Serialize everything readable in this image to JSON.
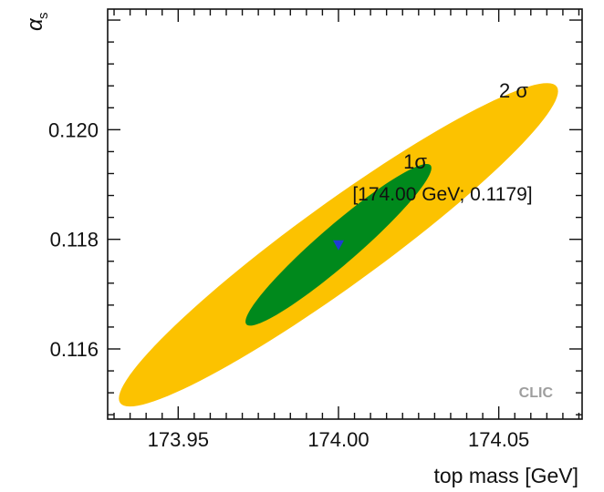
{
  "chart_data": {
    "type": "contour",
    "xlabel": "top mass [GeV]",
    "ylabel_symbol": "α",
    "ylabel_sub": "s",
    "xlim": [
      173.928,
      174.076
    ],
    "ylim": [
      0.11472,
      0.1222
    ],
    "xticks": [
      173.95,
      174.0,
      174.05
    ],
    "xtick_labels": [
      "173.95",
      "174.00",
      "174.05"
    ],
    "yticks": [
      0.116,
      0.118,
      0.12
    ],
    "ytick_labels": [
      "0.116",
      "0.118",
      "0.120"
    ],
    "grid": false,
    "best_fit": {
      "x": 174.0,
      "y": 0.1179,
      "label": "[174.00 GeV; 0.1179]",
      "marker": "down-triangle"
    },
    "contours": [
      {
        "name": "2σ",
        "label": "2 σ",
        "color": "#fcc200",
        "center": [
          174.0,
          0.1179
        ],
        "x_extent": [
          173.9315,
          174.0685
        ],
        "y_extent": [
          0.115,
          0.1209
        ]
      },
      {
        "name": "1σ",
        "label": "1σ",
        "color": "#00891c",
        "center": [
          174.0,
          0.1179
        ],
        "x_extent": [
          173.9755,
          174.0335
        ],
        "y_extent": [
          0.1164,
          0.11935
        ]
      }
    ],
    "watermark": "CLIC",
    "colors": {
      "two_sigma": "#fcc200",
      "one_sigma": "#00891c",
      "marker": "#1f3bd6",
      "watermark": "#9e9e9e"
    }
  }
}
